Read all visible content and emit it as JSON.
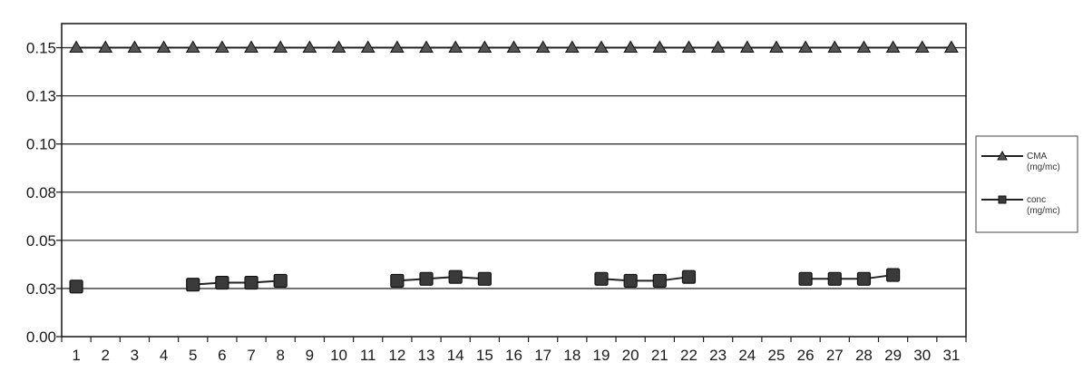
{
  "chart_data": {
    "type": "line",
    "x": [
      1,
      2,
      3,
      4,
      5,
      6,
      7,
      8,
      9,
      10,
      11,
      12,
      13,
      14,
      15,
      16,
      17,
      18,
      19,
      20,
      21,
      22,
      23,
      24,
      25,
      26,
      27,
      28,
      29,
      30,
      31
    ],
    "ylim": [
      0,
      0.1625
    ],
    "yticks": [
      0,
      0.025,
      0.05,
      0.075,
      0.1,
      0.125,
      0.15
    ],
    "ytick_labels": [
      "0.00",
      "0.03",
      "0.05",
      "0.08",
      "0.10",
      "0.13",
      "0.15"
    ],
    "grid": true,
    "legend_position": "right",
    "series": [
      {
        "name": "CMA (mg/mc)",
        "name_lines": [
          "CMA",
          "(mg/mc)"
        ],
        "marker": "triangle",
        "color": "#222222",
        "values": [
          0.15,
          0.15,
          0.15,
          0.15,
          0.15,
          0.15,
          0.15,
          0.15,
          0.15,
          0.15,
          0.15,
          0.15,
          0.15,
          0.15,
          0.15,
          0.15,
          0.15,
          0.15,
          0.15,
          0.15,
          0.15,
          0.15,
          0.15,
          0.15,
          0.15,
          0.15,
          0.15,
          0.15,
          0.15,
          0.15,
          0.15
        ]
      },
      {
        "name": "conc (mg/mc)",
        "name_lines": [
          "conc",
          "(mg/mc)"
        ],
        "marker": "square",
        "color": "#222222",
        "values": [
          0.026,
          null,
          null,
          null,
          0.027,
          0.028,
          0.028,
          0.029,
          null,
          null,
          null,
          0.029,
          0.03,
          0.031,
          0.03,
          null,
          null,
          null,
          0.03,
          0.029,
          0.029,
          0.031,
          null,
          null,
          null,
          0.03,
          0.03,
          0.03,
          0.032,
          null,
          null
        ]
      }
    ]
  }
}
